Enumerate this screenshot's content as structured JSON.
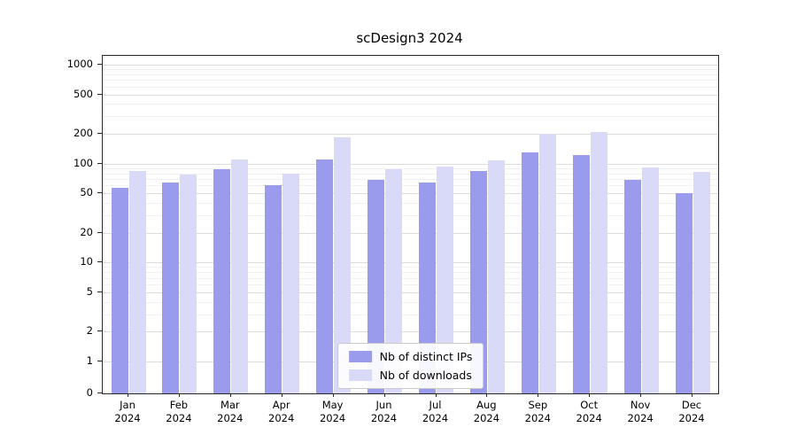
{
  "chart_data": {
    "type": "bar",
    "title": "scDesign3 2024",
    "categories": [
      "Jan",
      "Feb",
      "Mar",
      "Apr",
      "May",
      "Jun",
      "Jul",
      "Aug",
      "Sep",
      "Oct",
      "Nov",
      "Dec"
    ],
    "year_label": "2024",
    "series": [
      {
        "name": "Nb of distinct IPs",
        "color": "#9b9bee",
        "values": [
          57,
          65,
          88,
          60,
          110,
          68,
          64,
          85,
          130,
          122,
          68,
          50
        ]
      },
      {
        "name": "Nb of downloads",
        "color": "#d9d9f8",
        "values": [
          85,
          78,
          110,
          80,
          185,
          88,
          93,
          108,
          200,
          210,
          92,
          82
        ]
      }
    ],
    "yscale": "symlog",
    "ylim": [
      0,
      1200
    ],
    "yticks": [
      0,
      1,
      2,
      5,
      10,
      20,
      50,
      100,
      200,
      500,
      1000
    ],
    "grid": true,
    "legend_position": "bottom-center",
    "bar_colors": {
      "distinct_ips": "#9b9bee",
      "downloads": "#d9d9f8"
    }
  }
}
